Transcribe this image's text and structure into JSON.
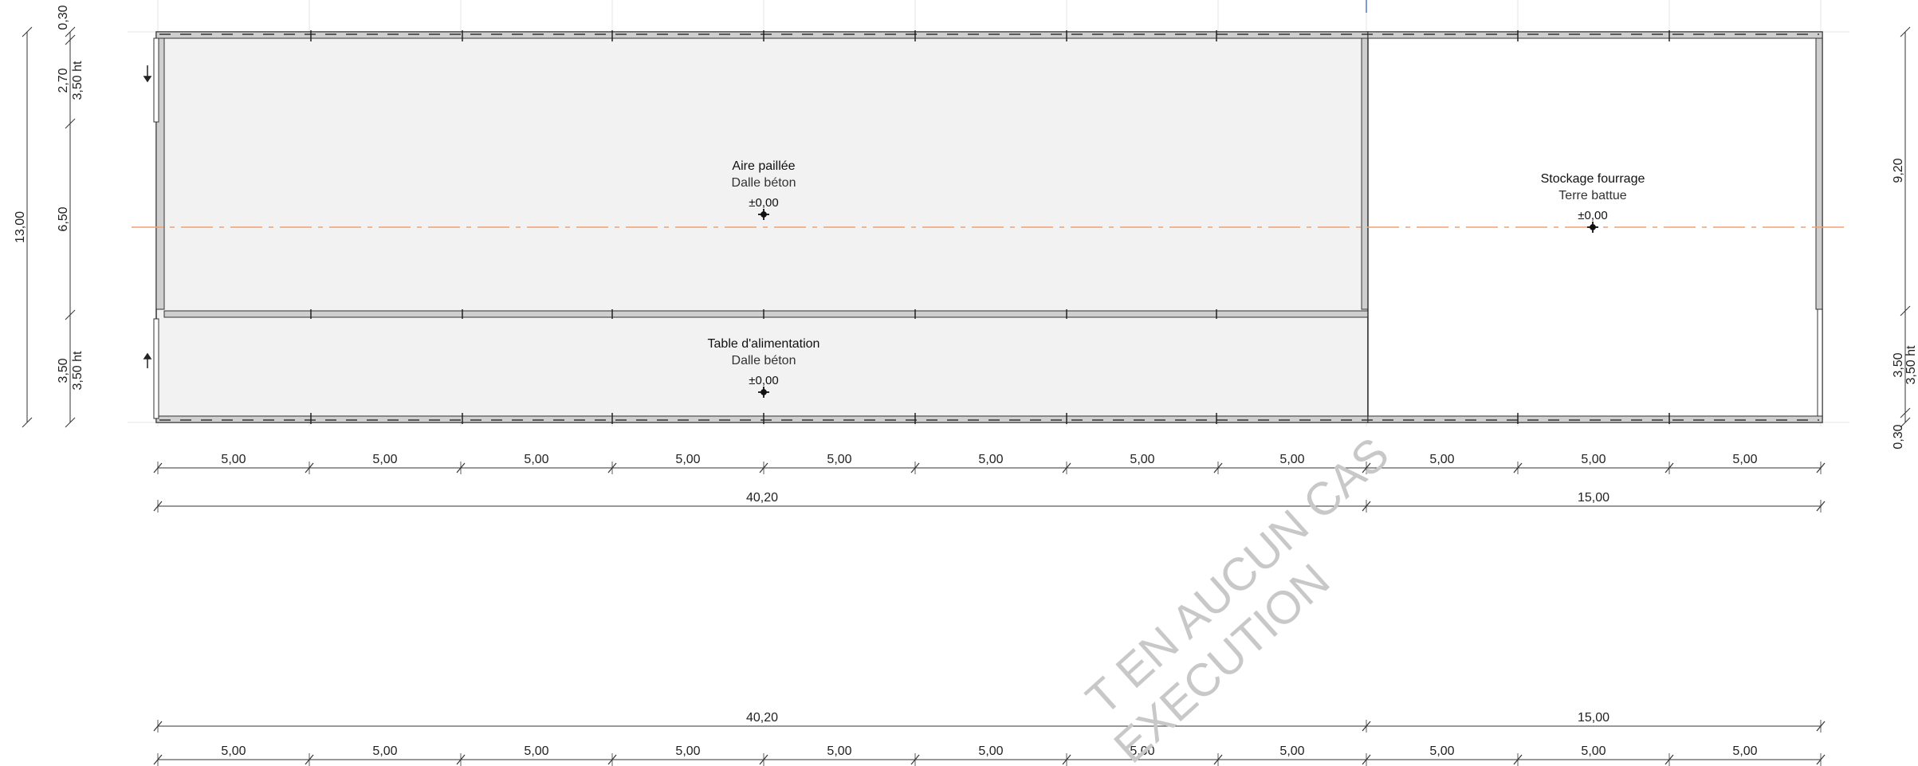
{
  "rooms": {
    "aire_paillee": {
      "name": "Aire paillée",
      "floor": "Dalle béton",
      "level": "±0,00"
    },
    "table_alimentation": {
      "name": "Table d'alimentation",
      "floor": "Dalle béton",
      "level": "±0,00"
    },
    "stockage_fourrage": {
      "name": "Stockage fourrage",
      "floor": "Terre battue",
      "level": "±0,00"
    }
  },
  "dims": {
    "left": {
      "total": "13,00",
      "top_wall": "0,30",
      "upper": "2,70",
      "upper_ht": "3,50 ht",
      "middle": "6,50",
      "lower": "3,50",
      "lower_ht": "3,50 ht"
    },
    "right": {
      "upper": "9,20",
      "lower": "3,50",
      "lower_ht": "3,50 ht",
      "bottom_wall": "0,30"
    },
    "bay": "5,00",
    "total_left": "40,20",
    "total_right": "15,00"
  },
  "watermark": {
    "line1": "T EN AUCUN CAS",
    "line2": "EXECUTION"
  },
  "colors": {
    "axis": "#f0a070",
    "slab": "#f2f2f2",
    "wall": "#cfcfcf",
    "line": "#333333"
  }
}
